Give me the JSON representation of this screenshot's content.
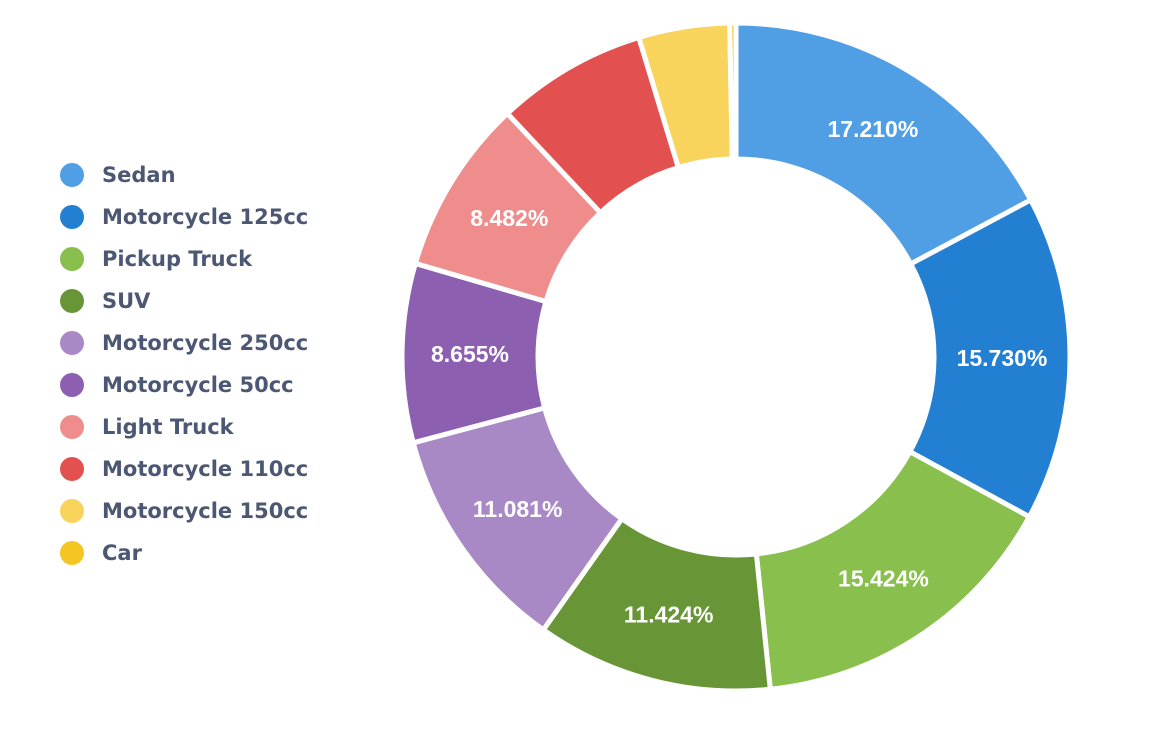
{
  "chart_data": {
    "type": "pie",
    "variant": "donut",
    "legend_position": "left",
    "categories": [
      "Sedan",
      "Motorcycle 125cc",
      "Pickup Truck",
      "SUV",
      "Motorcycle 250cc",
      "Motorcycle 50cc",
      "Light Truck",
      "Motorcycle 110cc",
      "Motorcycle 150cc",
      "Car"
    ],
    "values": [
      17.21,
      15.73,
      15.424,
      11.424,
      11.081,
      8.655,
      8.482,
      7.3,
      4.4,
      0.3
    ],
    "data_labels": [
      "17.210%",
      "15.730%",
      "15.424%",
      "11.424%",
      "11.081%",
      "8.655%",
      "8.482%",
      "",
      "",
      ""
    ],
    "colors": [
      "#509ee3",
      "#227fd2",
      "#88bf4d",
      "#689636",
      "#a989c5",
      "#8c5fb0",
      "#ef8c8c",
      "#e35050",
      "#f9d45c",
      "#f5c523"
    ]
  }
}
